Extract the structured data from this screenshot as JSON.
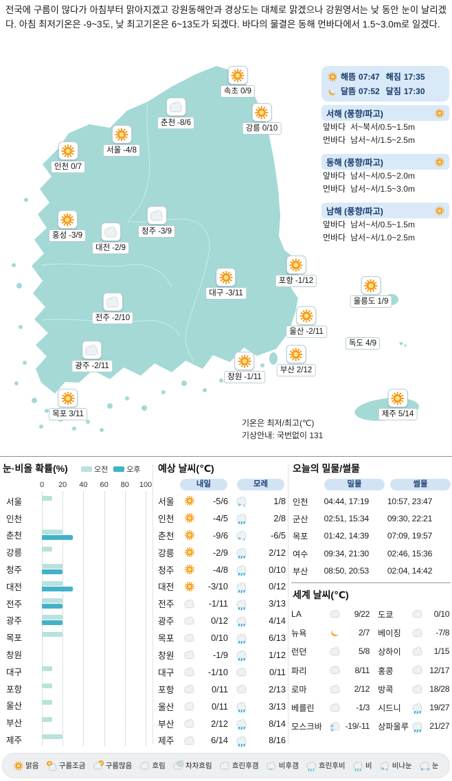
{
  "summary": "전국에 구름이 많다가 아침부터 맑아지겠고 강원동해안과 경상도는 대체로 맑겠으나 강원영서는 낮 동안 눈이 날리겠다. 아침 최저기온은 -9~3도, 낮 최고기온은 6~13도가 되겠다. 바다의 물결은 동해 먼바다에서 1.5~3.0m로 일겠다.",
  "colors": {
    "map_teal": "#a4d9d6",
    "panel_blue": "#d9e9f7",
    "accent_navy": "#16396b",
    "sun_orange": "#f7991c",
    "am_bar": "#b9e1de",
    "pm_bar": "#42b2c8",
    "legend_bg": "#edeff1"
  },
  "sun_moon": {
    "rows": [
      {
        "icon": "sun",
        "label1": "해뜸",
        "time1": "07:47",
        "label2": "해짐",
        "time2": "17:35"
      },
      {
        "icon": "moon",
        "label1": "달뜸",
        "time1": "07:52",
        "label2": "달짐",
        "time2": "17:30"
      }
    ]
  },
  "seas": [
    {
      "title": "서해 (풍향/파고)",
      "icon": "sun",
      "rows": [
        {
          "label": "앞바다",
          "value": "서~북서/0.5~1.5m"
        },
        {
          "label": "먼바다",
          "value": "남서~서/1.5~2.5m"
        }
      ]
    },
    {
      "title": "동해 (풍향/파고)",
      "icon": "sun",
      "rows": [
        {
          "label": "앞바다",
          "value": "남서~서/0.5~2.0m"
        },
        {
          "label": "먼바다",
          "value": "남서~서/1.5~3.0m"
        }
      ]
    },
    {
      "title": "남해 (풍향/파고)",
      "icon": "sun",
      "rows": [
        {
          "label": "앞바다",
          "value": "남서~서/0.5~1.5m"
        },
        {
          "label": "먼바다",
          "value": "남서~서/1.0~2.5m"
        }
      ]
    }
  ],
  "map": {
    "cities": [
      {
        "name": "속초",
        "temp": "0/9",
        "icon": "sun"
      },
      {
        "name": "춘천",
        "temp": "-8/6",
        "icon": "cloud"
      },
      {
        "name": "강릉",
        "temp": "0/10",
        "icon": "sun"
      },
      {
        "name": "서울",
        "temp": "-4/8",
        "icon": "sun"
      },
      {
        "name": "인천",
        "temp": "0/7",
        "icon": "sun"
      },
      {
        "name": "홍성",
        "temp": "-3/9",
        "icon": "sun"
      },
      {
        "name": "청주",
        "temp": "-3/9",
        "icon": "cloud"
      },
      {
        "name": "대전",
        "temp": "-2/9",
        "icon": "cloud"
      },
      {
        "name": "포항",
        "temp": "-1/12",
        "icon": "sun"
      },
      {
        "name": "대구",
        "temp": "-3/11",
        "icon": "sun"
      },
      {
        "name": "전주",
        "temp": "-2/10",
        "icon": "cloud"
      },
      {
        "name": "울산",
        "temp": "-2/11",
        "icon": "sun"
      },
      {
        "name": "광주",
        "temp": "-2/11",
        "icon": "cloud"
      },
      {
        "name": "창원",
        "temp": "-1/11",
        "icon": "sun"
      },
      {
        "name": "부산",
        "temp": "2/12",
        "icon": "sun"
      },
      {
        "name": "목포",
        "temp": "3/11",
        "icon": "sun"
      },
      {
        "name": "울릉도",
        "temp": "1/9",
        "icon": "sun"
      },
      {
        "name": "독도",
        "temp": "4/9",
        "icon": "none"
      },
      {
        "name": "제주",
        "temp": "5/14",
        "icon": "sun"
      }
    ],
    "notes": [
      "기온은 최저/최고(℃)",
      "기상안내: 국번없이 131"
    ]
  },
  "precip": {
    "title": "눈·비올 확률(%)",
    "legend_am": "오전",
    "legend_pm": "오후",
    "axis": [
      "0",
      "20",
      "40",
      "60",
      "80",
      "100"
    ],
    "rows": [
      {
        "city": "서울",
        "am": 10,
        "pm": 0
      },
      {
        "city": "인천",
        "am": 0,
        "pm": 0
      },
      {
        "city": "춘천",
        "am": 20,
        "pm": 30
      },
      {
        "city": "강릉",
        "am": 10,
        "pm": 0
      },
      {
        "city": "청주",
        "am": 20,
        "pm": 20
      },
      {
        "city": "대전",
        "am": 20,
        "pm": 30
      },
      {
        "city": "전주",
        "am": 20,
        "pm": 20
      },
      {
        "city": "광주",
        "am": 20,
        "pm": 20
      },
      {
        "city": "목포",
        "am": 20,
        "pm": 0
      },
      {
        "city": "창원",
        "am": 0,
        "pm": 0
      },
      {
        "city": "대구",
        "am": 10,
        "pm": 0
      },
      {
        "city": "포항",
        "am": 10,
        "pm": 0
      },
      {
        "city": "울산",
        "am": 10,
        "pm": 0
      },
      {
        "city": "부산",
        "am": 10,
        "pm": 0
      },
      {
        "city": "제주",
        "am": 20,
        "pm": 0
      }
    ]
  },
  "forecast": {
    "title": "예상 날씨(℃)",
    "col1": "내일",
    "col2": "모레",
    "rows": [
      {
        "city": "서울",
        "i1": "sun",
        "t1": "-5/6",
        "i2": "rain-snow",
        "t2": "1/8"
      },
      {
        "city": "인천",
        "i1": "sun",
        "t1": "-4/5",
        "i2": "rain",
        "t2": "2/8"
      },
      {
        "city": "춘천",
        "i1": "sun",
        "t1": "-9/6",
        "i2": "rain-snow",
        "t2": "-6/5"
      },
      {
        "city": "강릉",
        "i1": "sun",
        "t1": "-2/9",
        "i2": "rain",
        "t2": "2/12"
      },
      {
        "city": "청주",
        "i1": "sun",
        "t1": "-4/8",
        "i2": "rain",
        "t2": "0/10"
      },
      {
        "city": "대전",
        "i1": "sun",
        "t1": "-3/10",
        "i2": "rain",
        "t2": "0/12"
      },
      {
        "city": "전주",
        "i1": "cloud",
        "t1": "-1/11",
        "i2": "rain",
        "t2": "3/13"
      },
      {
        "city": "광주",
        "i1": "cloud",
        "t1": "0/12",
        "i2": "rain",
        "t2": "4/14"
      },
      {
        "city": "목포",
        "i1": "cloud",
        "t1": "0/10",
        "i2": "rain",
        "t2": "6/13"
      },
      {
        "city": "창원",
        "i1": "cloud",
        "t1": "-1/9",
        "i2": "rain",
        "t2": "1/12"
      },
      {
        "city": "대구",
        "i1": "cloud",
        "t1": "-1/10",
        "i2": "cloud",
        "t2": "0/11"
      },
      {
        "city": "포항",
        "i1": "cloud",
        "t1": "0/11",
        "i2": "cloud",
        "t2": "2/13"
      },
      {
        "city": "울산",
        "i1": "cloud",
        "t1": "0/11",
        "i2": "rain",
        "t2": "3/13"
      },
      {
        "city": "부산",
        "i1": "cloud",
        "t1": "2/12",
        "i2": "rain",
        "t2": "8/14"
      },
      {
        "city": "제주",
        "i1": "cloud",
        "t1": "6/14",
        "i2": "rain",
        "t2": "8/16"
      }
    ]
  },
  "tides": {
    "title": "오늘의 밀물/썰물",
    "col1": "밀물",
    "col2": "썰물",
    "rows": [
      {
        "port": "인천",
        "high": "04:44, 17:19",
        "low": "10:57, 23:47"
      },
      {
        "port": "군산",
        "high": "02:51, 15:34",
        "low": "09:30, 22:21"
      },
      {
        "port": "목포",
        "high": "01:42, 14:39",
        "low": "07:09, 19:57"
      },
      {
        "port": "여수",
        "high": "09:34, 21:30",
        "low": "02:46, 15:36"
      },
      {
        "port": "부산",
        "high": "08:50, 20:53",
        "low": "02:04, 14:42"
      }
    ]
  },
  "world": {
    "title": "세계 날씨(℃)",
    "rows": [
      {
        "c1": "LA",
        "i1": "cloud-moon",
        "t1": "9/22",
        "c2": "도쿄",
        "i2": "cloud",
        "t2": "0/10"
      },
      {
        "c1": "뉴욕",
        "i1": "moon",
        "t1": "2/7",
        "c2": "베이징",
        "i2": "cloud",
        "t2": "-7/8"
      },
      {
        "c1": "런던",
        "i1": "cloud",
        "t1": "5/8",
        "c2": "상하이",
        "i2": "cloud",
        "t2": "1/15"
      },
      {
        "c1": "파리",
        "i1": "cloud",
        "t1": "8/11",
        "c2": "홍콩",
        "i2": "cloud",
        "t2": "12/17"
      },
      {
        "c1": "로마",
        "i1": "cloud-moon",
        "t1": "2/12",
        "c2": "방콕",
        "i2": "cloud",
        "t2": "18/28"
      },
      {
        "c1": "베를린",
        "i1": "cloud-moon",
        "t1": "-1/3",
        "c2": "시드니",
        "i2": "rain",
        "t2": "19/27"
      },
      {
        "c1": "모스크바",
        "i1": "snow",
        "t1": "-19/-11",
        "c2": "상파울루",
        "i2": "rain",
        "t2": "21/27"
      }
    ]
  },
  "legend": {
    "items": [
      {
        "label": "맑음",
        "icon": "sun"
      },
      {
        "label": "구름조금",
        "icon": "sun-cloud"
      },
      {
        "label": "구름많음",
        "icon": "cloud-sun"
      },
      {
        "label": "흐림",
        "icon": "cloud"
      },
      {
        "label": "차차흐림",
        "icon": "clouds"
      },
      {
        "label": "흐린후갬",
        "icon": "cloud-moon"
      },
      {
        "label": "비후갬",
        "icon": "rain-moon"
      },
      {
        "label": "흐린후비",
        "icon": "cloud-rain"
      },
      {
        "label": "비",
        "icon": "rain"
      },
      {
        "label": "비나눈",
        "icon": "rain-snow"
      },
      {
        "label": "눈",
        "icon": "snow"
      }
    ]
  },
  "chart_data": {
    "type": "bar",
    "title": "눈·비올 확률(%)",
    "orientation": "horizontal",
    "categories": [
      "서울",
      "인천",
      "춘천",
      "강릉",
      "청주",
      "대전",
      "전주",
      "광주",
      "목포",
      "창원",
      "대구",
      "포항",
      "울산",
      "부산",
      "제주"
    ],
    "series": [
      {
        "name": "오전",
        "values": [
          10,
          0,
          20,
          10,
          20,
          20,
          20,
          20,
          20,
          0,
          10,
          10,
          10,
          10,
          20
        ]
      },
      {
        "name": "오후",
        "values": [
          0,
          0,
          30,
          0,
          20,
          30,
          20,
          20,
          0,
          0,
          0,
          0,
          0,
          0,
          0
        ]
      }
    ],
    "xlim": [
      0,
      100
    ],
    "grid": true,
    "legend_position": "top"
  }
}
